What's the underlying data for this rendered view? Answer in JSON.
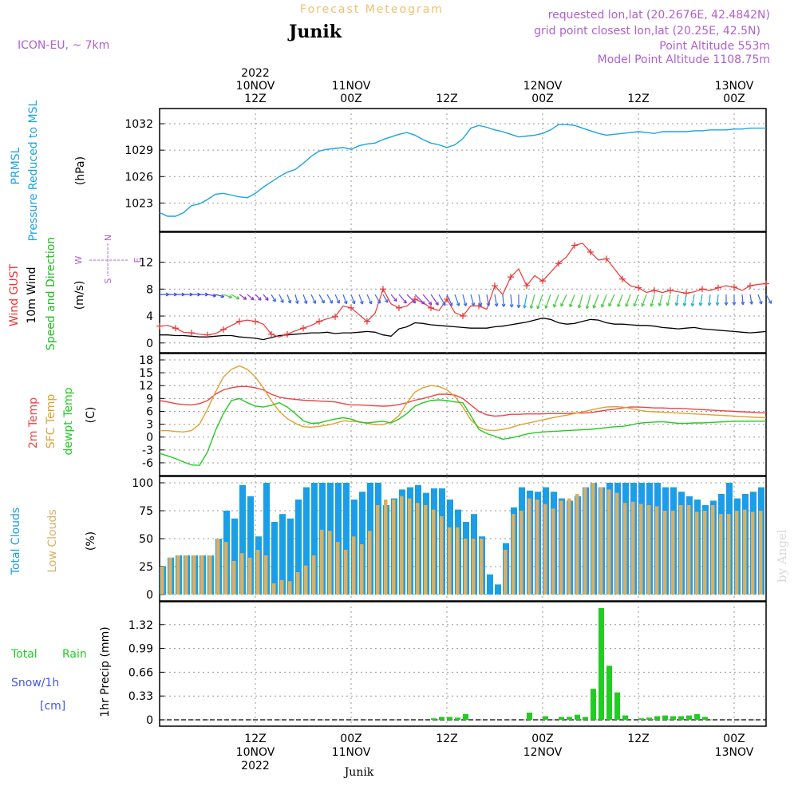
{
  "header": {
    "title": "Forecast Meteogram",
    "location": "Junik",
    "model": "ICON-EU, ~ 7km",
    "requested": "requested lon,lat (20.2676E, 42.4842N)",
    "gridpoint": "grid point closest lon,lat (20.25E, 42.5N)",
    "altitude": "Point Altitude 553m",
    "model_altitude": "Model Point Altitude 1108.75m",
    "watermark": "by Angel",
    "footer_location": "Junik"
  },
  "colors": {
    "pressure": "#1aa3e6",
    "gust": "#ee3333",
    "wind": "#000000",
    "direction": "#22bb22",
    "temp": "#ee4444",
    "sfc_temp": "#e0a030",
    "dewpt": "#22cc22",
    "total_clouds": "#1a9ee8",
    "low_clouds": "#d9b060",
    "rain": "#22cc22",
    "snow": "#4455ee",
    "header_purple": "#b060d0",
    "title_orange": "#f0c070"
  },
  "time_axis": {
    "top_ticks": [
      {
        "t": 12,
        "lines": [
          "2022",
          "10NOV",
          "12Z"
        ]
      },
      {
        "t": 24,
        "lines": [
          "11NOV",
          "00Z"
        ]
      },
      {
        "t": 36,
        "lines": [
          "12Z"
        ]
      },
      {
        "t": 48,
        "lines": [
          "12NOV",
          "00Z"
        ]
      },
      {
        "t": 60,
        "lines": [
          "12Z"
        ]
      },
      {
        "t": 72,
        "lines": [
          "13NOV",
          "00Z"
        ]
      }
    ],
    "bottom_ticks": [
      {
        "t": 12,
        "lines": [
          "12Z",
          "10NOV",
          "2022"
        ]
      },
      {
        "t": 24,
        "lines": [
          "00Z",
          "11NOV"
        ]
      },
      {
        "t": 36,
        "lines": [
          "12Z"
        ]
      },
      {
        "t": 48,
        "lines": [
          "00Z",
          "12NOV"
        ]
      },
      {
        "t": 60,
        "lines": [
          "12Z"
        ]
      },
      {
        "t": 72,
        "lines": [
          "00Z",
          "13NOV"
        ]
      }
    ],
    "range_hours": [
      0,
      76
    ]
  },
  "chart_data": [
    {
      "type": "line",
      "id": "pressure",
      "labels": [
        "PRMSL",
        "Pressure Reduced to MSL",
        "(hPa)"
      ],
      "ylim": [
        1020.5,
        1033
      ],
      "yticks": [
        1023,
        1026,
        1029,
        1032
      ],
      "x": [
        0,
        1,
        2,
        3,
        4,
        5,
        6,
        7,
        8,
        9,
        10,
        11,
        12,
        13,
        14,
        15,
        16,
        17,
        18,
        19,
        20,
        21,
        22,
        23,
        24,
        25,
        26,
        27,
        28,
        29,
        30,
        31,
        32,
        33,
        34,
        35,
        36,
        37,
        38,
        39,
        40,
        41,
        42,
        43,
        44,
        45,
        46,
        47,
        48,
        49,
        50,
        51,
        52,
        53,
        54,
        55,
        56,
        57,
        58,
        59,
        60,
        61,
        62,
        63,
        64,
        65,
        66,
        67,
        68,
        69,
        70,
        71,
        72,
        73,
        74,
        75,
        76
      ],
      "y": [
        1021.9,
        1021.5,
        1021.5,
        1021.9,
        1022.7,
        1022.9,
        1023.4,
        1024.0,
        1024.1,
        1023.9,
        1023.7,
        1023.6,
        1024.1,
        1024.8,
        1025.4,
        1026.0,
        1026.5,
        1026.8,
        1027.5,
        1028.3,
        1028.9,
        1029.1,
        1029.2,
        1029.3,
        1029.1,
        1029.5,
        1029.7,
        1029.8,
        1030.2,
        1030.5,
        1030.8,
        1031.0,
        1030.7,
        1030.2,
        1029.8,
        1029.6,
        1029.3,
        1029.6,
        1030.3,
        1031.5,
        1031.8,
        1031.6,
        1031.3,
        1031.1,
        1030.8,
        1030.5,
        1030.6,
        1030.7,
        1030.9,
        1031.3,
        1031.9,
        1031.9,
        1031.8,
        1031.5,
        1031.2,
        1030.9,
        1030.7,
        1030.8,
        1030.9,
        1031.0,
        1031.1,
        1031.0,
        1030.9,
        1031.1,
        1031.1,
        1031.1,
        1031.1,
        1031.2,
        1031.2,
        1031.3,
        1031.3,
        1031.3,
        1031.4,
        1031.4,
        1031.5,
        1031.5,
        1031.5
      ]
    },
    {
      "type": "line",
      "id": "wind",
      "labels": [
        "Wind GUST",
        "10m Wind",
        "Speed and Direction",
        "(m/s)"
      ],
      "compass": [
        "N",
        "W",
        "E",
        "S"
      ],
      "ylim": [
        -0.5,
        15.5
      ],
      "yticks": [
        0,
        4,
        8,
        12
      ],
      "x": [
        0,
        1,
        2,
        3,
        4,
        5,
        6,
        7,
        8,
        9,
        10,
        11,
        12,
        13,
        14,
        15,
        16,
        17,
        18,
        19,
        20,
        21,
        22,
        23,
        24,
        25,
        26,
        27,
        28,
        29,
        30,
        31,
        32,
        33,
        34,
        35,
        36,
        37,
        38,
        39,
        40,
        41,
        42,
        43,
        44,
        45,
        46,
        47,
        48,
        49,
        50,
        51,
        52,
        53,
        54,
        55,
        56,
        57,
        58,
        59,
        60,
        61,
        62,
        63,
        64,
        65,
        66,
        67,
        68,
        69,
        70,
        71,
        72,
        73,
        74,
        75,
        76
      ],
      "gust": [
        2.5,
        2.6,
        2.2,
        1.6,
        1.5,
        1.3,
        1.2,
        1.4,
        2.0,
        2.6,
        3.2,
        3.4,
        3.2,
        2.8,
        1.3,
        0.9,
        1.3,
        1.8,
        2.2,
        2.6,
        3.2,
        3.6,
        3.9,
        5.5,
        5.2,
        4.2,
        3.2,
        4.4,
        8.0,
        5.8,
        5.2,
        5.5,
        6.5,
        6.0,
        5.2,
        4.8,
        6.5,
        4.5,
        4.0,
        5.5,
        5.5,
        5.0,
        8.5,
        7.2,
        9.8,
        11.0,
        8.5,
        10.0,
        9.2,
        10.5,
        11.8,
        12.8,
        14.5,
        14.8,
        13.5,
        12.3,
        12.5,
        11.0,
        9.5,
        8.5,
        8.2,
        7.5,
        7.8,
        7.5,
        7.8,
        7.6,
        7.4,
        7.6,
        8.0,
        7.8,
        8.2,
        8.5,
        8.3,
        7.8,
        8.5,
        8.7,
        8.8
      ],
      "speed": [
        1.2,
        1.2,
        1.1,
        1.1,
        1.0,
        0.9,
        0.9,
        1.0,
        1.1,
        1.1,
        0.9,
        0.8,
        0.7,
        0.5,
        0.8,
        1.1,
        1.2,
        1.3,
        1.4,
        1.5,
        1.5,
        1.6,
        1.4,
        1.5,
        1.5,
        1.6,
        1.7,
        1.6,
        1.2,
        1.0,
        2.1,
        2.4,
        3.0,
        2.9,
        2.7,
        2.6,
        2.5,
        2.4,
        2.3,
        2.2,
        2.2,
        2.2,
        2.4,
        2.5,
        2.7,
        2.9,
        3.1,
        3.4,
        3.7,
        3.5,
        3.0,
        2.8,
        2.9,
        3.2,
        3.5,
        3.4,
        3.0,
        2.8,
        2.8,
        2.7,
        2.6,
        2.6,
        2.5,
        2.3,
        2.2,
        2.1,
        2.2,
        2.3,
        2.1,
        2.0,
        1.9,
        1.8,
        1.7,
        1.6,
        1.5,
        1.6,
        1.7
      ],
      "dir_deg": [
        270,
        270,
        270,
        270,
        270,
        270,
        280,
        285,
        290,
        300,
        305,
        310,
        315,
        320,
        330,
        335,
        340,
        345,
        340,
        335,
        330,
        330,
        335,
        340,
        340,
        340,
        335,
        330,
        330,
        320,
        320,
        315,
        315,
        320,
        325,
        330,
        335,
        340,
        345,
        345,
        350,
        350,
        350,
        355,
        355,
        0,
        10,
        15,
        20,
        20,
        20,
        25,
        20,
        15,
        15,
        20,
        20,
        25,
        20,
        20,
        20,
        20,
        15,
        15,
        15,
        10,
        10,
        10,
        10,
        5,
        5,
        0,
        0,
        355,
        350,
        340,
        330
      ]
    },
    {
      "type": "line",
      "id": "temperature",
      "labels": [
        "2m Temp",
        "SFC Temp",
        "dewpt Temp",
        "(C)"
      ],
      "ylim": [
        -7.5,
        18
      ],
      "yticks": [
        -6,
        -3,
        0,
        3,
        6,
        9,
        12,
        15,
        18
      ],
      "x": [
        0,
        1,
        2,
        3,
        4,
        5,
        6,
        7,
        8,
        9,
        10,
        11,
        12,
        13,
        14,
        15,
        16,
        17,
        18,
        19,
        20,
        21,
        22,
        23,
        24,
        25,
        26,
        27,
        28,
        29,
        30,
        31,
        32,
        33,
        34,
        35,
        36,
        37,
        38,
        39,
        40,
        41,
        42,
        43,
        44,
        45,
        46,
        47,
        48,
        49,
        50,
        51,
        52,
        53,
        54,
        55,
        56,
        57,
        58,
        59,
        60,
        61,
        62,
        63,
        64,
        65,
        66,
        67,
        68,
        69,
        70,
        71,
        72,
        73,
        74,
        75,
        76
      ],
      "temp2m": [
        8.5,
        8.2,
        7.8,
        7.6,
        7.5,
        7.8,
        8.5,
        10.0,
        11.0,
        11.5,
        11.8,
        11.8,
        11.5,
        11.0,
        10.0,
        9.3,
        9.0,
        8.8,
        8.6,
        8.5,
        8.4,
        8.3,
        8.2,
        7.8,
        7.5,
        7.5,
        7.4,
        7.3,
        7.2,
        7.3,
        7.6,
        8.0,
        8.6,
        9.0,
        9.5,
        10.0,
        10.0,
        9.8,
        9.0,
        7.5,
        6.0,
        5.2,
        4.9,
        5.0,
        5.3,
        5.3,
        5.4,
        5.4,
        5.4,
        5.5,
        5.5,
        5.5,
        5.6,
        5.6,
        5.7,
        6.0,
        6.3,
        6.5,
        6.8,
        7.0,
        7.0,
        6.9,
        6.8,
        6.8,
        6.7,
        6.7,
        6.6,
        6.5,
        6.4,
        6.3,
        6.2,
        6.1,
        6.0,
        5.9,
        5.8,
        5.7,
        5.6
      ],
      "sfc": [
        1.5,
        1.5,
        1.3,
        1.2,
        1.5,
        3.0,
        6.5,
        10.5,
        14.0,
        15.8,
        16.6,
        15.8,
        14.0,
        11.5,
        8.5,
        6.0,
        4.3,
        3.2,
        2.4,
        2.3,
        2.5,
        2.8,
        3.2,
        3.8,
        3.7,
        3.6,
        3.2,
        2.9,
        2.9,
        3.5,
        5.0,
        8.0,
        10.5,
        11.5,
        12.0,
        11.8,
        11.0,
        9.5,
        7.0,
        4.0,
        2.3,
        1.6,
        1.5,
        1.8,
        2.2,
        2.8,
        3.2,
        3.6,
        4.0,
        4.4,
        4.8,
        5.1,
        5.5,
        5.9,
        6.3,
        6.7,
        7.0,
        7.1,
        7.0,
        6.7,
        6.3,
        6.0,
        5.9,
        5.8,
        5.7,
        5.6,
        5.5,
        5.4,
        5.3,
        5.2,
        5.1,
        5.0,
        4.9,
        4.8,
        4.7,
        4.6,
        4.5
      ],
      "dewpt": [
        -3.8,
        -4.4,
        -5.0,
        -5.8,
        -6.5,
        -6.6,
        -3.5,
        1.5,
        5.5,
        8.5,
        9.0,
        8.0,
        7.2,
        7.0,
        7.4,
        8.0,
        7.0,
        5.5,
        3.8,
        3.2,
        3.3,
        3.8,
        4.2,
        4.5,
        4.2,
        3.5,
        3.3,
        3.5,
        3.7,
        3.3,
        4.2,
        5.5,
        7.2,
        8.0,
        8.5,
        8.7,
        8.5,
        8.2,
        8.0,
        5.0,
        1.8,
        0.8,
        0.2,
        -0.5,
        -0.2,
        0.2,
        0.7,
        1.0,
        1.2,
        1.3,
        1.4,
        1.5,
        1.6,
        1.7,
        1.8,
        2.0,
        2.2,
        2.4,
        2.5,
        2.8,
        3.2,
        3.4,
        3.5,
        3.6,
        3.4,
        3.2,
        3.2,
        3.3,
        3.3,
        3.4,
        3.5,
        3.6,
        3.7,
        3.7,
        3.7,
        3.7,
        3.7
      ]
    },
    {
      "type": "bar",
      "id": "clouds",
      "labels": [
        "Total Clouds",
        "Low Clouds",
        "(%)"
      ],
      "ylim": [
        0,
        100
      ],
      "yticks": [
        0,
        25,
        50,
        75,
        100
      ],
      "x": [
        0,
        1,
        2,
        3,
        4,
        5,
        6,
        7,
        8,
        9,
        10,
        11,
        12,
        13,
        14,
        15,
        16,
        17,
        18,
        19,
        20,
        21,
        22,
        23,
        24,
        25,
        26,
        27,
        28,
        29,
        30,
        31,
        32,
        33,
        34,
        35,
        36,
        37,
        38,
        39,
        40,
        41,
        42,
        43,
        44,
        45,
        46,
        47,
        48,
        49,
        50,
        51,
        52,
        53,
        54,
        55,
        56,
        57,
        58,
        59,
        60,
        61,
        62,
        63,
        64,
        65,
        66,
        67,
        68,
        69,
        70,
        71,
        72,
        73,
        74,
        75,
        76
      ],
      "total": [
        25,
        33,
        35,
        35,
        35,
        35,
        35,
        50,
        75,
        68,
        98,
        88,
        52,
        100,
        65,
        72,
        68,
        85,
        96,
        100,
        100,
        100,
        100,
        100,
        85,
        92,
        100,
        100,
        80,
        86,
        94,
        96,
        98,
        91,
        95,
        95,
        85,
        76,
        65,
        72,
        52,
        18,
        9,
        46,
        78,
        96,
        93,
        92,
        96,
        92,
        86,
        84,
        88,
        96,
        100,
        96,
        100,
        100,
        100,
        100,
        100,
        100,
        100,
        96,
        96,
        92,
        88,
        85,
        80,
        84,
        90,
        100,
        86,
        90,
        92,
        96,
        80
      ],
      "low": [
        25,
        33,
        35,
        35,
        35,
        35,
        35,
        50,
        47,
        30,
        37,
        33,
        40,
        35,
        10,
        13,
        12,
        20,
        26,
        35,
        58,
        57,
        47,
        40,
        52,
        45,
        57,
        80,
        85,
        85,
        88,
        86,
        82,
        80,
        76,
        70,
        60,
        60,
        50,
        50,
        50,
        0,
        0,
        40,
        72,
        75,
        86,
        85,
        81,
        77,
        84,
        86,
        90,
        96,
        100,
        96,
        94,
        91,
        82,
        83,
        81,
        80,
        79,
        75,
        75,
        80,
        80,
        74,
        75,
        80,
        72,
        72,
        75,
        76,
        74,
        75,
        73
      ]
    },
    {
      "type": "bar",
      "id": "precip",
      "labels": [
        "Total",
        "Rain",
        "Snow/1h",
        "[cm]",
        "1hr Precip (mm)"
      ],
      "ylim": [
        0,
        1.55
      ],
      "yticks": [
        0,
        0.33,
        0.66,
        0.99,
        1.32
      ],
      "x": [
        34,
        35,
        36,
        37,
        38,
        46,
        48,
        50,
        51,
        52,
        53,
        54,
        55,
        56,
        57,
        58,
        60,
        61,
        62,
        63,
        64,
        65,
        66,
        67,
        68
      ],
      "values": [
        0.02,
        0.04,
        0.04,
        0.03,
        0.08,
        0.1,
        0.05,
        0.04,
        0.04,
        0.07,
        0.04,
        0.43,
        1.55,
        0.75,
        0.38,
        0.06,
        0.02,
        0.03,
        0.05,
        0.06,
        0.05,
        0.05,
        0.06,
        0.08,
        0.04
      ]
    }
  ]
}
